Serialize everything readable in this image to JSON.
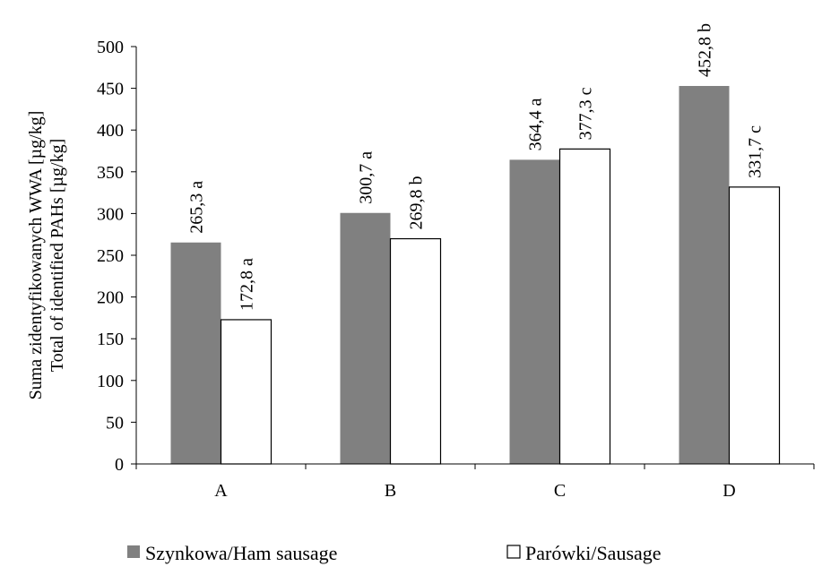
{
  "chart_data": {
    "type": "bar",
    "categories": [
      "A",
      "B",
      "C",
      "D"
    ],
    "series": [
      {
        "name": "Szynkowa/Ham sausage",
        "values": [
          265.3,
          300.7,
          364.4,
          452.8
        ],
        "labels": [
          "265,3 a",
          "300,7 a",
          "364,4 a",
          "452,8 b"
        ],
        "color": "#808080"
      },
      {
        "name": "Parówki/Sausage",
        "values": [
          172.8,
          269.8,
          377.3,
          331.7
        ],
        "labels": [
          "172,8 a",
          "269,8 b",
          "377,3 c",
          "331,7 c"
        ],
        "color": "#ffffff"
      }
    ],
    "ylabel_line1": "Suma zidentyfikowanych WWA [µg/kg]",
    "ylabel_line2": "Total of identified PAHs [µg/kg]",
    "ylim": [
      0,
      500
    ],
    "yticks": [
      0,
      50,
      100,
      150,
      200,
      250,
      300,
      350,
      400,
      450,
      500
    ],
    "grid": false,
    "legend_position": "bottom"
  }
}
